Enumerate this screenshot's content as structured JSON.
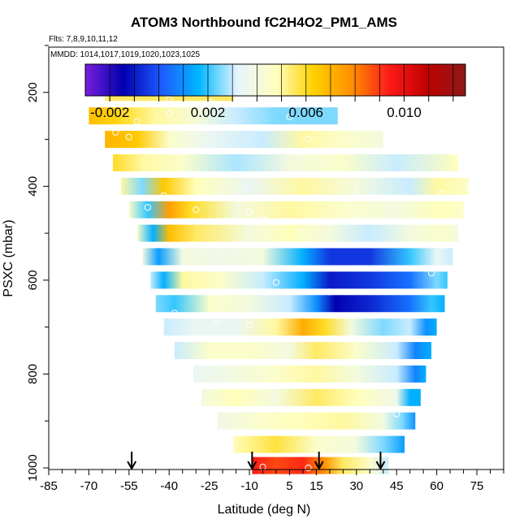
{
  "chart_data": {
    "type": "heatmap",
    "title": "ATOM3 Northbound fC2H4O2_PM1_AMS",
    "flights_label": "Flts: 7,8,9,10,11,12",
    "dates_label": "MMDD: 1014,1017,1019,1020,1023,1025",
    "xlabel": "Latitude (deg N)",
    "ylabel": "PSXC (mbar)",
    "xlim": [
      -85,
      85
    ],
    "ylim": [
      1000,
      100
    ],
    "x_ticks": [
      -85,
      -70,
      -55,
      -40,
      -25,
      -10,
      5,
      15,
      30,
      45,
      60,
      75
    ],
    "x_tick_labels": [
      "-85",
      "-70",
      "-55",
      "-40",
      "-25",
      "-10",
      "5",
      "15",
      "30",
      "45",
      "60",
      "75"
    ],
    "y_ticks": [
      200,
      400,
      600,
      800,
      1000
    ],
    "y_tick_labels": [
      "200",
      "400",
      "600",
      "800",
      "1000"
    ],
    "colorbar": {
      "range": [
        -0.003,
        0.0125
      ],
      "ticks": [
        -0.002,
        0.002,
        0.006,
        0.01
      ],
      "tick_labels": [
        "-0.002",
        "0.002",
        "0.006",
        "0.010"
      ],
      "colors": [
        "#7a1fdc",
        "#0000b0",
        "#1e5aff",
        "#00b8ff",
        "#e6f4ff",
        "#ffffc0",
        "#ffd200",
        "#ff9000",
        "#ff1a1a",
        "#c00000",
        "#8b1a1a"
      ]
    },
    "bands": [
      {
        "p": 200,
        "lat_range": [
          -64,
          -16
        ],
        "points": [
          [
            -64,
            0.0055
          ],
          [
            -40,
            0.0055
          ],
          [
            -16,
            0.0055
          ]
        ]
      },
      {
        "p": 250,
        "lat_range": [
          -70,
          23
        ],
        "points": [
          [
            -70,
            0.0068
          ],
          [
            -60,
            0.0062
          ],
          [
            -45,
            0.005
          ],
          [
            -30,
            0.0042
          ],
          [
            -15,
            0.003
          ],
          [
            0,
            0.0025
          ],
          [
            23,
            0.0025
          ]
        ]
      },
      {
        "p": 300,
        "lat_range": [
          -64,
          40
        ],
        "points": [
          [
            -64,
            0.007
          ],
          [
            -52,
            0.0065
          ],
          [
            -40,
            0.0045
          ],
          [
            -25,
            0.0035
          ],
          [
            -5,
            0.003
          ],
          [
            10,
            0.005
          ],
          [
            25,
            0.0045
          ],
          [
            40,
            0.004
          ]
        ]
      },
      {
        "p": 350,
        "lat_range": [
          -61,
          68
        ],
        "points": [
          [
            -61,
            0.006
          ],
          [
            -50,
            0.005
          ],
          [
            -35,
            0.0045
          ],
          [
            -15,
            0.0028
          ],
          [
            5,
            0.004
          ],
          [
            25,
            0.0045
          ],
          [
            45,
            0.003
          ],
          [
            68,
            0.0048
          ]
        ]
      },
      {
        "p": 400,
        "lat_range": [
          -58,
          72
        ],
        "points": [
          [
            -58,
            0.005
          ],
          [
            -50,
            0.0025
          ],
          [
            -42,
            0.0065
          ],
          [
            -30,
            0.0048
          ],
          [
            -10,
            0.0035
          ],
          [
            10,
            0.005
          ],
          [
            30,
            0.004
          ],
          [
            50,
            0.003
          ],
          [
            60,
            0.005
          ],
          [
            72,
            0.0045
          ]
        ]
      },
      {
        "p": 450,
        "lat_range": [
          -55,
          70
        ],
        "points": [
          [
            -55,
            0.0045
          ],
          [
            -48,
            0.002
          ],
          [
            -40,
            0.0075
          ],
          [
            -32,
            0.006
          ],
          [
            -15,
            0.004
          ],
          [
            5,
            0.005
          ],
          [
            25,
            0.0045
          ],
          [
            45,
            0.004
          ],
          [
            62,
            0.0048
          ],
          [
            70,
            0.0045
          ]
        ]
      },
      {
        "p": 500,
        "lat_range": [
          -52,
          68
        ],
        "points": [
          [
            -52,
            0.0045
          ],
          [
            -46,
            0.0015
          ],
          [
            -40,
            0.0068
          ],
          [
            -30,
            0.0055
          ],
          [
            -10,
            0.004
          ],
          [
            5,
            0.0048
          ],
          [
            20,
            0.004
          ],
          [
            35,
            0.003
          ],
          [
            50,
            0.004
          ],
          [
            62,
            0.0045
          ],
          [
            68,
            0.004
          ]
        ]
      },
      {
        "p": 550,
        "lat_range": [
          -50,
          66
        ],
        "points": [
          [
            -50,
            0.004
          ],
          [
            -44,
            0.0012
          ],
          [
            -35,
            0.004
          ],
          [
            -20,
            0.0038
          ],
          [
            -5,
            0.004
          ],
          [
            10,
            0.0015
          ],
          [
            20,
            -0.0005
          ],
          [
            35,
            -0.0005
          ],
          [
            50,
            0.002
          ],
          [
            60,
            0.0035
          ],
          [
            66,
            0.003
          ]
        ]
      },
      {
        "p": 600,
        "lat_range": [
          -47,
          64
        ],
        "points": [
          [
            -47,
            0.003
          ],
          [
            -42,
            0.0015
          ],
          [
            -35,
            0.005
          ],
          [
            -20,
            0.0045
          ],
          [
            -5,
            0.003
          ],
          [
            10,
            0.0015
          ],
          [
            20,
            -0.001
          ],
          [
            35,
            -0.0005
          ],
          [
            50,
            0.0005
          ],
          [
            60,
            0.0025
          ],
          [
            64,
            0.002
          ]
        ]
      },
      {
        "p": 650,
        "lat_range": [
          -45,
          63
        ],
        "points": [
          [
            -45,
            0.0025
          ],
          [
            -38,
            0.002
          ],
          [
            -25,
            0.0045
          ],
          [
            -10,
            0.004
          ],
          [
            5,
            0.003
          ],
          [
            15,
            0.001
          ],
          [
            22,
            -0.0015
          ],
          [
            35,
            -0.0008
          ],
          [
            50,
            0.0005
          ],
          [
            58,
            0.002
          ],
          [
            63,
            0.0015
          ]
        ]
      },
      {
        "p": 700,
        "lat_range": [
          -42,
          60
        ],
        "points": [
          [
            -42,
            0.003
          ],
          [
            -30,
            0.0035
          ],
          [
            -15,
            0.0035
          ],
          [
            0,
            0.005
          ],
          [
            10,
            0.0072
          ],
          [
            18,
            0.006
          ],
          [
            28,
            0.004
          ],
          [
            40,
            0.0025
          ],
          [
            50,
            0.003
          ],
          [
            56,
            0.001
          ],
          [
            60,
            0.0015
          ]
        ]
      },
      {
        "p": 750,
        "lat_range": [
          -38,
          58
        ],
        "points": [
          [
            -38,
            0.003
          ],
          [
            -25,
            0.0045
          ],
          [
            -10,
            0.0045
          ],
          [
            5,
            0.004
          ],
          [
            15,
            0.0055
          ],
          [
            30,
            0.0045
          ],
          [
            45,
            0.003
          ],
          [
            52,
            0.0008
          ],
          [
            58,
            0.0015
          ]
        ]
      },
      {
        "p": 800,
        "lat_range": [
          -31,
          56
        ],
        "points": [
          [
            -31,
            0.0035
          ],
          [
            -15,
            0.004
          ],
          [
            0,
            0.0045
          ],
          [
            15,
            0.005
          ],
          [
            30,
            0.004
          ],
          [
            45,
            0.003
          ],
          [
            52,
            0.0008
          ],
          [
            56,
            0.0015
          ]
        ]
      },
      {
        "p": 850,
        "lat_range": [
          -28,
          54
        ],
        "points": [
          [
            -28,
            0.004
          ],
          [
            -15,
            0.0048
          ],
          [
            0,
            0.004
          ],
          [
            15,
            0.0055
          ],
          [
            30,
            0.0048
          ],
          [
            45,
            0.0038
          ],
          [
            50,
            0.0015
          ],
          [
            54,
            0.0015
          ]
        ]
      },
      {
        "p": 900,
        "lat_range": [
          -22,
          52
        ],
        "points": [
          [
            -22,
            0.0038
          ],
          [
            -5,
            0.0045
          ],
          [
            10,
            0.0048
          ],
          [
            25,
            0.005
          ],
          [
            40,
            0.004
          ],
          [
            47,
            0.0025
          ],
          [
            52,
            0.001
          ]
        ]
      },
      {
        "p": 950,
        "lat_range": [
          -16,
          48
        ],
        "points": [
          [
            -16,
            0.0048
          ],
          [
            0,
            0.0058
          ],
          [
            15,
            0.0045
          ],
          [
            30,
            0.004
          ],
          [
            40,
            0.0025
          ],
          [
            48,
            0.0012
          ]
        ]
      },
      {
        "p": 995,
        "lat_range": [
          -9,
          42
        ],
        "points": [
          [
            -9,
            0.0095
          ],
          [
            0,
            0.0088
          ],
          [
            10,
            0.0092
          ],
          [
            18,
            0.0078
          ],
          [
            25,
            0.0055
          ],
          [
            35,
            0.0045
          ],
          [
            42,
            0.003
          ]
        ]
      }
    ],
    "sample_markers": [
      [
        -64,
        205
      ],
      [
        -40,
        215
      ],
      [
        -16,
        200
      ],
      [
        -52,
        262
      ],
      [
        -40,
        245
      ],
      [
        -25,
        220
      ],
      [
        5,
        252
      ],
      [
        23,
        225
      ],
      [
        -55,
        295
      ],
      [
        -60,
        285
      ],
      [
        12,
        300
      ],
      [
        68,
        335
      ],
      [
        -42,
        420
      ],
      [
        72,
        405
      ],
      [
        62,
        415
      ],
      [
        -48,
        445
      ],
      [
        -30,
        450
      ],
      [
        -10,
        455
      ],
      [
        -5,
        470
      ],
      [
        10,
        500
      ],
      [
        30,
        470
      ],
      [
        35,
        525
      ],
      [
        -38,
        670
      ],
      [
        -22,
        685
      ],
      [
        -10,
        695
      ],
      [
        0,
        605
      ],
      [
        20,
        625
      ],
      [
        58,
        585
      ],
      [
        -43,
        690
      ],
      [
        10,
        775
      ],
      [
        45,
        885
      ],
      [
        -5,
        998
      ],
      [
        12,
        1000
      ],
      [
        38,
        1003
      ],
      [
        43,
        995
      ],
      [
        58,
        925
      ]
    ],
    "arrows_lat": [
      -54,
      -9,
      16,
      39
    ]
  }
}
